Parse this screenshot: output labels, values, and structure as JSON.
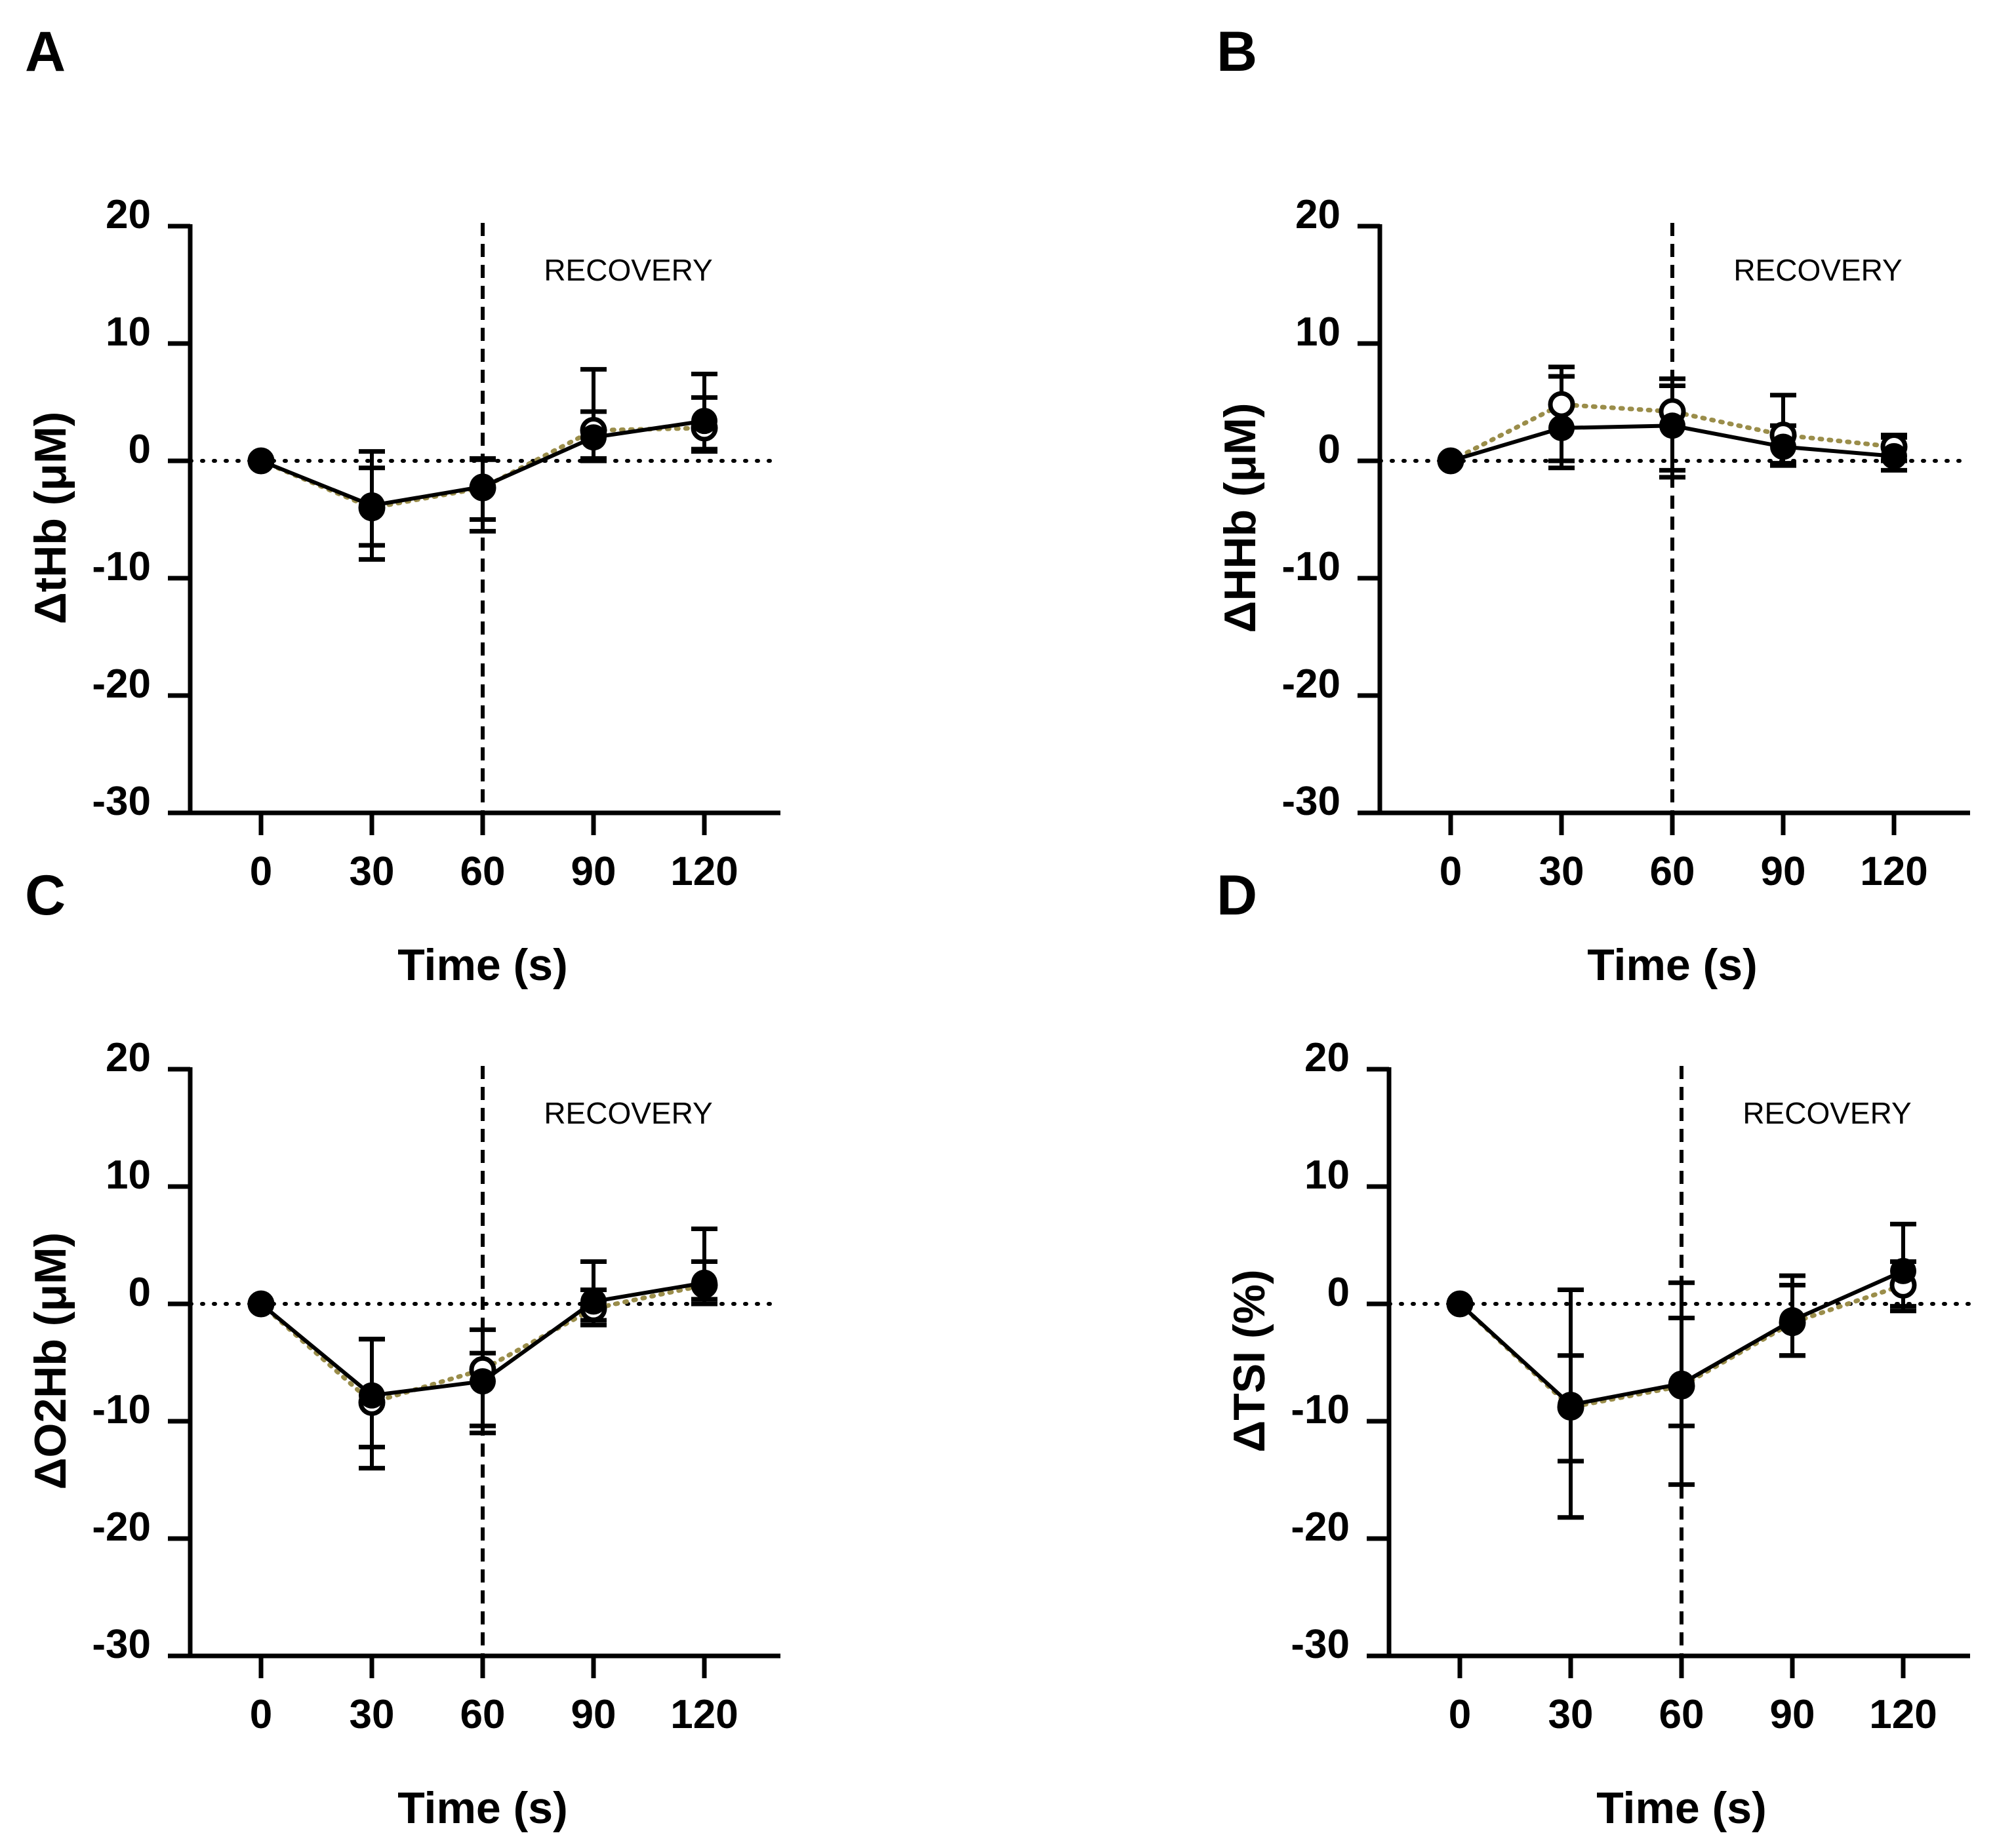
{
  "chart_data": [
    {
      "panel": "A",
      "type": "line",
      "title": "",
      "xlabel": "Time (s)",
      "ylabel": "ΔtHb (μM)",
      "x": [
        0,
        30,
        60,
        90,
        120
      ],
      "xticks": [
        "0",
        "30",
        "60",
        "90",
        "120"
      ],
      "ylim": [
        -30,
        20
      ],
      "yticks": [
        "20",
        "10",
        "0",
        "-10",
        "-20",
        "-30"
      ],
      "annotation": "RECOVERY",
      "vline_x": 60,
      "series": [
        {
          "name": "filled",
          "values": [
            0,
            -3.8,
            -2.2,
            2.0,
            3.4
          ],
          "err_hi": [
            0,
            4.6,
            2.4,
            2.2,
            4.0
          ],
          "err_lo": [
            0,
            4.6,
            3.8,
            2.0,
            2.4
          ]
        },
        {
          "name": "open",
          "values": [
            0,
            -4.0,
            -2.3,
            2.6,
            2.8
          ],
          "err_hi": [
            0,
            3.4,
            2.4,
            5.2,
            2.6
          ],
          "err_lo": [
            0,
            3.2,
            2.7,
            2.4,
            2.0
          ]
        }
      ]
    },
    {
      "panel": "B",
      "type": "line",
      "title": "",
      "xlabel": "Time (s)",
      "ylabel": "ΔHHb (μM)",
      "x": [
        0,
        30,
        60,
        90,
        120
      ],
      "xticks": [
        "0",
        "30",
        "60",
        "90",
        "120"
      ],
      "ylim": [
        -30,
        20
      ],
      "yticks": [
        "20",
        "10",
        "0",
        "-10",
        "-20",
        "-30"
      ],
      "annotation": "RECOVERY",
      "vline_x": 60,
      "series": [
        {
          "name": "filled",
          "values": [
            0,
            2.8,
            3.0,
            1.2,
            0.4
          ],
          "err_hi": [
            0,
            4.4,
            3.4,
            1.8,
            1.6
          ],
          "err_lo": [
            0,
            3.4,
            3.8,
            1.4,
            1.2
          ]
        },
        {
          "name": "open",
          "values": [
            0,
            4.8,
            4.2,
            2.2,
            1.2
          ],
          "err_hi": [
            0,
            3.2,
            2.8,
            3.4,
            1.0
          ],
          "err_lo": [
            0,
            4.8,
            5.6,
            2.6,
            1.2
          ]
        }
      ]
    },
    {
      "panel": "C",
      "type": "line",
      "title": "",
      "xlabel": "Time (s)",
      "ylabel": "ΔO2Hb (μM)",
      "x": [
        0,
        30,
        60,
        90,
        120
      ],
      "xticks": [
        "0",
        "30",
        "60",
        "90",
        "120"
      ],
      "ylim": [
        -30,
        20
      ],
      "yticks": [
        "20",
        "10",
        "0",
        "-10",
        "-20",
        "-30"
      ],
      "annotation": "RECOVERY",
      "vline_x": 60,
      "series": [
        {
          "name": "filled",
          "values": [
            0,
            -7.8,
            -6.6,
            0.2,
            1.8
          ],
          "err_hi": [
            0,
            4.8,
            2.4,
            3.4,
            4.6
          ],
          "err_lo": [
            0,
            6.2,
            3.8,
            1.6,
            1.8
          ]
        },
        {
          "name": "open",
          "values": [
            0,
            -8.4,
            -5.6,
            -0.4,
            1.6
          ],
          "err_hi": [
            0,
            5.4,
            3.4,
            1.6,
            2.0
          ],
          "err_lo": [
            0,
            3.8,
            5.4,
            1.4,
            1.2
          ]
        }
      ]
    },
    {
      "panel": "D",
      "type": "line",
      "title": "",
      "xlabel": "Time (s)",
      "ylabel": "ΔTSI (%)",
      "x": [
        0,
        30,
        60,
        90,
        120
      ],
      "xticks": [
        "0",
        "30",
        "60",
        "90",
        "120"
      ],
      "ylim": [
        -30,
        20
      ],
      "yticks": [
        "20",
        "10",
        "0",
        "-10",
        "-20",
        "-30"
      ],
      "annotation": "RECOVERY",
      "vline_x": 60,
      "series": [
        {
          "name": "filled",
          "values": [
            0,
            -8.6,
            -6.8,
            -1.4,
            2.8
          ],
          "err_hi": [
            0,
            9.8,
            8.6,
            3.8,
            4.0
          ],
          "err_lo": [
            0,
            9.6,
            8.6,
            3.0,
            3.4
          ]
        },
        {
          "name": "open",
          "values": [
            0,
            -8.8,
            -7.0,
            -1.6,
            1.6
          ],
          "err_hi": [
            0,
            4.4,
            5.8,
            3.2,
            2.0
          ],
          "err_lo": [
            0,
            4.6,
            3.4,
            2.8,
            1.8
          ]
        }
      ]
    }
  ]
}
